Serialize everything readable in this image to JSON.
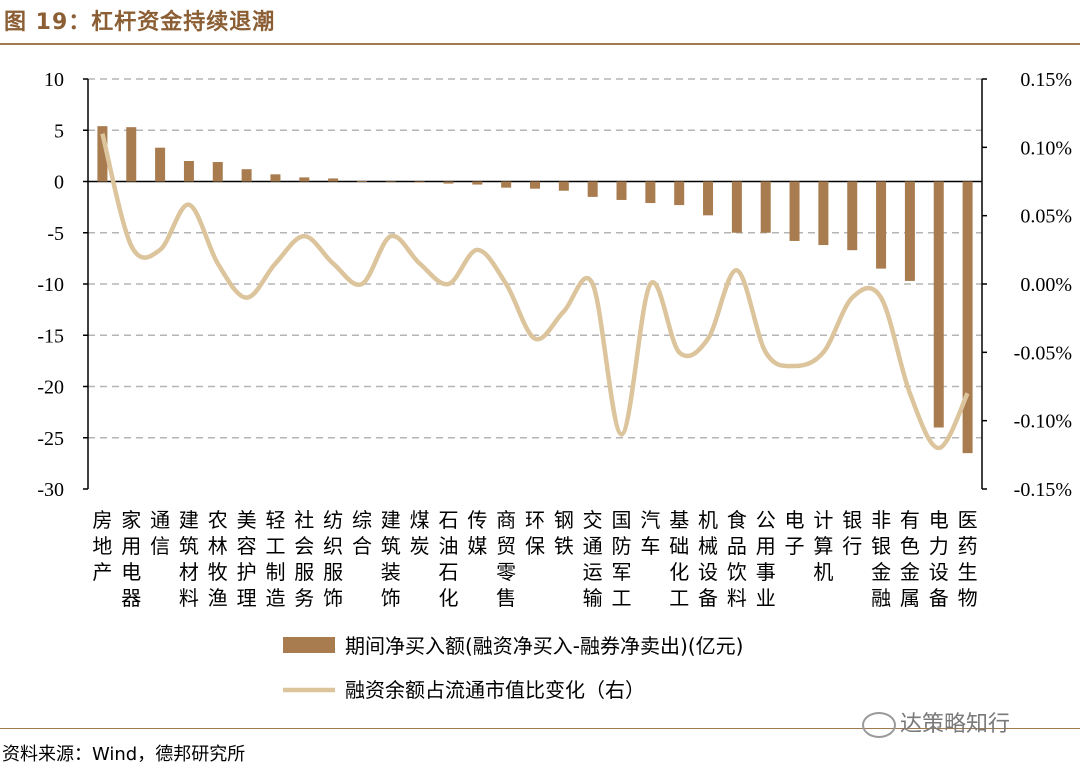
{
  "figure_title": "图 19：杠杆资金持续退潮",
  "source_note": "资料来源：Wind，德邦研究所",
  "watermark": "达策略知行",
  "colors": {
    "bar": "#a87c4f",
    "line": "#dcc49c",
    "grid": "#b5b5b5",
    "accent": "#8b5e34"
  },
  "chart_data": {
    "type": "bar",
    "categories": [
      "房地产",
      "家用电器",
      "通信",
      "建筑材料",
      "农林牧渔",
      "美容护理",
      "轻工制造",
      "社会服务",
      "纺织服饰",
      "综合",
      "建筑装饰",
      "煤炭",
      "石油石化",
      "传媒",
      "商贸零售",
      "环保",
      "钢铁",
      "交通运输",
      "国防军工",
      "汽车",
      "基础化工",
      "机械设备",
      "食品饮料",
      "公用事业",
      "电子",
      "计算机",
      "银行",
      "非银金融",
      "有色金属",
      "电力设备",
      "医药生物"
    ],
    "series": [
      {
        "name": "期间净买入额(融资净买入-融券净卖出)(亿元)",
        "type": "bar",
        "axis": "left",
        "values": [
          5.4,
          5.3,
          3.3,
          2.0,
          1.9,
          1.2,
          0.7,
          0.4,
          0.3,
          0.05,
          -0.05,
          -0.1,
          -0.2,
          -0.3,
          -0.6,
          -0.7,
          -0.9,
          -1.5,
          -1.8,
          -2.1,
          -2.3,
          -3.3,
          -5.0,
          -5.0,
          -5.8,
          -6.2,
          -6.7,
          -8.5,
          -9.7,
          -24.0,
          -26.5
        ]
      },
      {
        "name": "融资余额占流通市值比变化（右）",
        "type": "line",
        "axis": "right",
        "values": [
          0.0011,
          0.00028,
          0.00025,
          0.00058,
          0.00015,
          -0.0001,
          0.00015,
          0.00035,
          0.00015,
          0.0,
          0.00035,
          0.00015,
          0.0,
          0.00025,
          0.0,
          -0.0004,
          -0.0002,
          0.0,
          -0.0011,
          0.0,
          -0.0005,
          -0.0004,
          0.0001,
          -0.0005,
          -0.0006,
          -0.0005,
          -0.0001,
          -0.0001,
          -0.0008,
          -0.0012,
          -0.0008
        ]
      }
    ],
    "ylim": [
      -30,
      10
    ],
    "y_ticks": [
      10,
      5,
      0,
      -5,
      -10,
      -15,
      -20,
      -25,
      -30
    ],
    "y2lim": [
      -0.0015,
      0.0015
    ],
    "y2_ticks": [
      "0.15%",
      "0.10%",
      "0.05%",
      "0.00%",
      "-0.05%",
      "-0.10%",
      "-0.15%"
    ],
    "grid": true,
    "legend_position": "bottom"
  }
}
